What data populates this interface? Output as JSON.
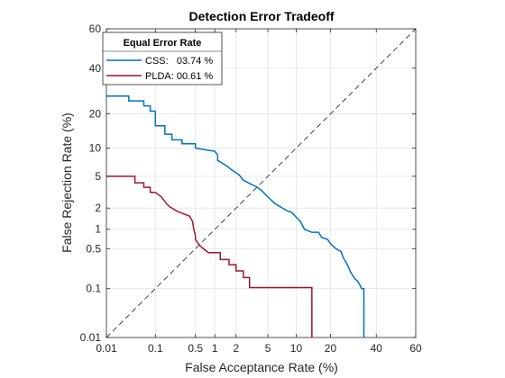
{
  "chart_data": {
    "type": "line",
    "title": "Detection Error Tradeoff",
    "xlabel": "False Acceptance Rate (%)",
    "ylabel": "False Rejection Rate (%)",
    "xscale": "probit",
    "yscale": "probit",
    "xlim": [
      0.01,
      60
    ],
    "ylim": [
      0.01,
      60
    ],
    "xticks": [
      {
        "value": 0.01,
        "label": "0.01"
      },
      {
        "value": 0.1,
        "label": "0.1"
      },
      {
        "value": 0.5,
        "label": "0.5"
      },
      {
        "value": 1,
        "label": "1"
      },
      {
        "value": 2,
        "label": "2"
      },
      {
        "value": 5,
        "label": "5"
      },
      {
        "value": 10,
        "label": "10"
      },
      {
        "value": 20,
        "label": "20"
      },
      {
        "value": 40,
        "label": "40"
      },
      {
        "value": 60,
        "label": "60"
      }
    ],
    "yticks": [
      {
        "value": 0.01,
        "label": "0.01"
      },
      {
        "value": 0.1,
        "label": "0.1"
      },
      {
        "value": 0.5,
        "label": "0.5"
      },
      {
        "value": 1,
        "label": "1"
      },
      {
        "value": 2,
        "label": "2"
      },
      {
        "value": 5,
        "label": "5"
      },
      {
        "value": 10,
        "label": "10"
      },
      {
        "value": 20,
        "label": "20"
      },
      {
        "value": 40,
        "label": "40"
      },
      {
        "value": 60,
        "label": "60"
      }
    ],
    "grid": true,
    "legend": {
      "title": "Equal Error Rate",
      "position": "top-left",
      "entries": [
        "CSS:   03.74 %",
        "PLDA: 00.61 %"
      ]
    },
    "reference_line": {
      "type": "diagonal",
      "style": "dashed",
      "color": "#404040"
    },
    "series": [
      {
        "name": "CSS",
        "color": "#0072BD",
        "x": [
          0.01,
          0.03,
          0.03,
          0.06,
          0.06,
          0.08,
          0.08,
          0.1,
          0.1,
          0.15,
          0.15,
          0.2,
          0.2,
          0.3,
          0.3,
          0.5,
          0.5,
          0.8,
          1.0,
          1.1,
          1.1,
          1.5,
          1.7,
          2.2,
          2.5,
          3.2,
          3.7,
          4.2,
          5.0,
          6.0,
          8.0,
          9.0,
          10.0,
          11.0,
          12.0,
          14.0,
          16.0,
          17.0,
          19.0,
          20.0,
          22.0,
          24.0,
          25.0,
          26.0,
          27.0,
          28.0,
          30.0,
          31.0,
          32.0,
          33.0,
          34.0,
          34.0
        ],
        "y": [
          27,
          27,
          25,
          25,
          23,
          23,
          21,
          21,
          16,
          16,
          13.5,
          13.5,
          12,
          12,
          11,
          11,
          10,
          9.5,
          9.3,
          8.5,
          7.5,
          6.5,
          6,
          5.2,
          4.5,
          4.0,
          3.74,
          3.4,
          2.8,
          2.3,
          1.85,
          1.75,
          1.5,
          1.3,
          1.0,
          0.9,
          0.9,
          0.75,
          0.7,
          0.6,
          0.5,
          0.45,
          0.35,
          0.3,
          0.25,
          0.2,
          0.15,
          0.14,
          0.12,
          0.1,
          0.1,
          0.01
        ]
      },
      {
        "name": "PLDA",
        "color": "#A2142F",
        "x": [
          0.01,
          0.04,
          0.04,
          0.06,
          0.06,
          0.08,
          0.08,
          0.1,
          0.13,
          0.16,
          0.18,
          0.25,
          0.3,
          0.4,
          0.45,
          0.47,
          0.5,
          0.5,
          0.55,
          0.6,
          0.7,
          0.8,
          1.0,
          1.2,
          1.2,
          1.6,
          1.6,
          2.0,
          2.0,
          2.5,
          2.5,
          3.0,
          3.0,
          7.0,
          14.0,
          14.0
        ],
        "y": [
          5.0,
          5.0,
          4.2,
          4.2,
          3.7,
          3.7,
          3.2,
          3.2,
          2.8,
          2.3,
          2.1,
          1.8,
          1.7,
          1.55,
          1.3,
          1.0,
          0.8,
          0.7,
          0.61,
          0.55,
          0.48,
          0.43,
          0.43,
          0.43,
          0.33,
          0.33,
          0.27,
          0.27,
          0.21,
          0.21,
          0.16,
          0.16,
          0.105,
          0.105,
          0.105,
          0.01
        ]
      }
    ]
  }
}
